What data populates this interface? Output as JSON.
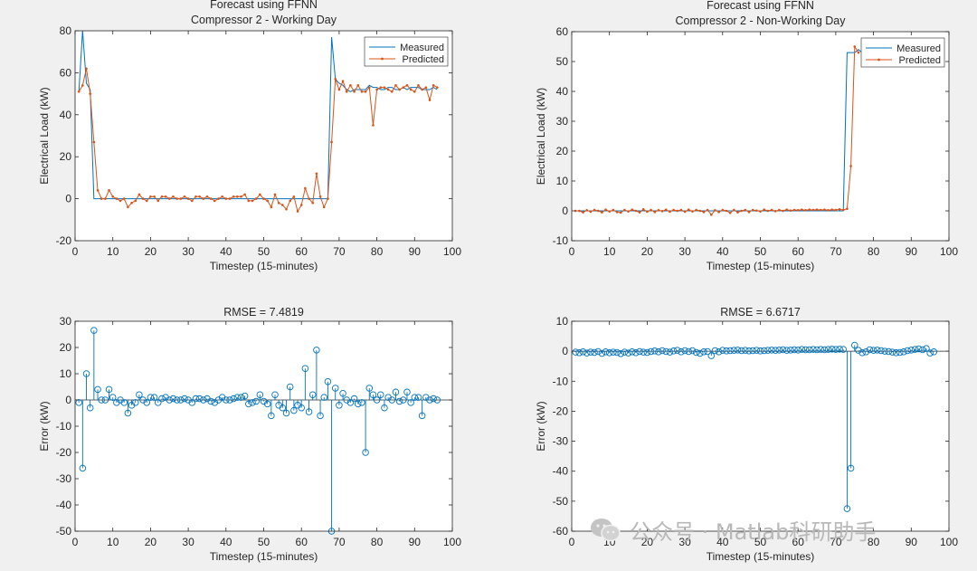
{
  "chart_data": [
    {
      "type": "line",
      "title": "Forecast using FFNN",
      "subtitle": "Compressor 2 - Working Day",
      "xlabel": "Timestep (15-minutes)",
      "ylabel": "Electrical Load (kW)",
      "xlim": [
        0,
        100
      ],
      "ylim": [
        -20,
        80
      ],
      "xticks": [
        0,
        10,
        20,
        30,
        40,
        50,
        60,
        70,
        80,
        90,
        100
      ],
      "yticks": [
        -20,
        0,
        20,
        40,
        60,
        80
      ],
      "legend": {
        "position": "top-right",
        "entries": [
          "Measured",
          "Predicted"
        ]
      },
      "series": [
        {
          "name": "Measured",
          "color": "#0072bd",
          "values": [
            51,
            80,
            55,
            52,
            0,
            0,
            0,
            0,
            0,
            0,
            0,
            0,
            0,
            0,
            0,
            0,
            0,
            0,
            0,
            0,
            0,
            0,
            0,
            0,
            0,
            0,
            0,
            0,
            0,
            0,
            0,
            0,
            0,
            0,
            0,
            0,
            0,
            0,
            0,
            0,
            0,
            0,
            0,
            0,
            0,
            0,
            0,
            0,
            0,
            0,
            0,
            0,
            0,
            0,
            0,
            0,
            0,
            0,
            0,
            0,
            0,
            0,
            0,
            0,
            0,
            0,
            0,
            77,
            57,
            55,
            54,
            52,
            51,
            52,
            52,
            52,
            52,
            54,
            53,
            53,
            52,
            52,
            53,
            53,
            52,
            52,
            53,
            52,
            53,
            53,
            53,
            52,
            52,
            52,
            53,
            52
          ]
        },
        {
          "name": "Predicted",
          "color": "#d95319",
          "values": [
            51,
            54,
            62,
            50,
            27,
            4,
            0,
            0,
            4,
            1,
            0,
            -1,
            0,
            -4,
            -2,
            -1,
            2,
            0,
            -1,
            1,
            1,
            -1,
            1,
            1,
            0,
            1,
            0,
            0,
            1,
            0,
            -1,
            1,
            1,
            0,
            1,
            0,
            -1,
            0,
            1,
            0,
            0,
            1,
            1,
            1,
            2,
            -1,
            -1,
            0,
            2,
            0,
            -1,
            -4,
            2,
            -2,
            -3,
            -5,
            -1,
            1,
            -6,
            -3,
            5,
            0,
            -2,
            12,
            1,
            -4,
            0,
            27,
            57,
            52,
            56,
            51,
            54,
            51,
            54,
            51,
            51,
            53,
            35,
            52,
            53,
            53,
            52,
            51,
            54,
            52,
            53,
            54,
            52,
            51,
            54,
            52,
            53,
            47,
            54,
            53
          ]
        }
      ]
    },
    {
      "type": "line",
      "title": "Forecast using FFNN",
      "subtitle": "Compressor 2 - Non-Working Day",
      "xlabel": "Timestep (15-minutes)",
      "ylabel": "Electrical Load (kW)",
      "xlim": [
        0,
        100
      ],
      "ylim": [
        -10,
        60
      ],
      "xticks": [
        0,
        10,
        20,
        30,
        40,
        50,
        60,
        70,
        80,
        90,
        100
      ],
      "yticks": [
        -10,
        0,
        10,
        20,
        30,
        40,
        50,
        60
      ],
      "legend": {
        "position": "top-right",
        "entries": [
          "Measured",
          "Predicted"
        ]
      },
      "series": [
        {
          "name": "Measured",
          "color": "#0072bd",
          "values": [
            0,
            0,
            0,
            0,
            0,
            0,
            0,
            0,
            0,
            0,
            0,
            0,
            0,
            0,
            0,
            0,
            0,
            0,
            0,
            0,
            0,
            0,
            0,
            0,
            0,
            0,
            0,
            0,
            0,
            0,
            0,
            0,
            0,
            0,
            0,
            0,
            0,
            0,
            0,
            0,
            0,
            0,
            0,
            0,
            0,
            0,
            0,
            0,
            0,
            0,
            0,
            0,
            0,
            0,
            0,
            0,
            0,
            0,
            0,
            0,
            0,
            0,
            0,
            0,
            0,
            0,
            0,
            0,
            0,
            0,
            0,
            0,
            53,
            53,
            53,
            54,
            53,
            54
          ]
        },
        {
          "name": "Predicted",
          "color": "#d95319",
          "values": [
            0,
            0,
            -0.5,
            0.2,
            -0.3,
            0.3,
            0,
            -0.5,
            0.4,
            -0.2,
            0.3,
            -0.4,
            -0.6,
            0.3,
            -0.2,
            0.4,
            0,
            -0.5,
            0.5,
            -0.3,
            0.3,
            -0.4,
            0.2,
            -0.1,
            0.4,
            -0.3,
            0.3,
            0,
            0.3,
            -0.3,
            0.4,
            -0.2,
            0.3,
            0,
            -0.4,
            0.3,
            -1.3,
            0.2,
            -0.4,
            0.3,
            0,
            -0.7,
            0.3,
            -0.5,
            0,
            0.3,
            -0.4,
            0.3,
            0.1,
            -0.2,
            0.4,
            0,
            0.3,
            -0.1,
            0.3,
            0,
            0.4,
            0.1,
            0.3,
            0.2,
            0.4,
            0.2,
            0.4,
            0.3,
            0.4,
            0.3,
            0.4,
            0.2,
            0.4,
            0.3,
            0.5,
            0.3,
            0.7,
            15,
            55,
            53
          ]
        }
      ]
    },
    {
      "type": "stem",
      "title": "RMSE = 7.4819",
      "xlabel": "Timestep (15-minutes)",
      "ylabel": "Error (kW)",
      "xlim": [
        0,
        100
      ],
      "ylim": [
        -50,
        30
      ],
      "xticks": [
        0,
        10,
        20,
        30,
        40,
        50,
        60,
        70,
        80,
        90,
        100
      ],
      "yticks": [
        -50,
        -40,
        -30,
        -20,
        -10,
        0,
        10,
        20,
        30
      ],
      "color": "#0072bd",
      "values": [
        -1,
        -26,
        10,
        -3,
        26.5,
        4,
        0,
        0,
        4,
        1,
        -1,
        0,
        -1,
        -5,
        -2,
        -1,
        2,
        0,
        -1,
        1,
        1,
        -1,
        0.5,
        1,
        0,
        0.5,
        0,
        0,
        0.5,
        0,
        -1,
        0.5,
        0.5,
        0,
        0.5,
        -0.5,
        -1,
        0,
        1,
        0,
        0,
        0.5,
        1,
        1,
        1.5,
        -1.5,
        -1,
        -0.5,
        2,
        -0.5,
        -1.5,
        -6,
        2,
        -2,
        -3,
        -5,
        5,
        -4,
        -2,
        -3,
        12,
        -4.5,
        2,
        19,
        -6,
        1,
        7,
        -50,
        4.5,
        -2,
        2.5,
        0,
        -1,
        0.5,
        -1.5,
        -1,
        -20,
        4.5,
        2,
        0,
        2,
        -3,
        1,
        0,
        3,
        -0.5,
        0,
        3,
        -1,
        1,
        1,
        -6,
        1,
        0,
        0.5,
        0
      ]
    },
    {
      "type": "stem",
      "title": "RMSE = 6.6717",
      "xlabel": "Timestep (15-minutes)",
      "ylabel": "Error (kW)",
      "xlim": [
        0,
        100
      ],
      "ylim": [
        -60,
        10
      ],
      "xticks": [
        0,
        10,
        20,
        30,
        40,
        50,
        60,
        70,
        80,
        90,
        100
      ],
      "yticks": [
        -60,
        -50,
        -40,
        -30,
        -20,
        -10,
        0,
        10
      ],
      "color": "#0072bd",
      "values": [
        -0.3,
        -0.5,
        -0.2,
        -0.6,
        -0.3,
        -0.4,
        -0.1,
        -0.7,
        -0.2,
        -0.5,
        -0.3,
        -0.4,
        -0.8,
        -0.3,
        -0.6,
        -0.2,
        -0.5,
        -0.1,
        -0.3,
        -0.4,
        -0.1,
        0.1,
        -0.2,
        0.2,
        -0.1,
        -0.3,
        0.1,
        0.3,
        -0.2,
        0.2,
        -0.1,
        0.2,
        -0.4,
        -0.7,
        -0.2,
        -0.1,
        -1.5,
        0.2,
        -0.2,
        0.3,
        0.1,
        0.2,
        0.3,
        0.4,
        0.2,
        0.3,
        0.1,
        0.2,
        0.3,
        0.1,
        0.2,
        0.3,
        0.4,
        0.3,
        0.4,
        0.5,
        0.3,
        0.4,
        0.5,
        0.4,
        0.6,
        0.5,
        0.5,
        0.6,
        0.5,
        0.6,
        0.5,
        0.6,
        0.7,
        0.6,
        0.7,
        0.6,
        -52.5,
        -39,
        2,
        0.3,
        -0.5,
        -0.2,
        0.5,
        0.3,
        0.4,
        0.2,
        0,
        -0.1,
        -0.3,
        -0.5,
        -0.4,
        -0.2,
        0.2,
        0.4,
        0.6,
        0.8,
        0.5,
        0.9,
        -0.6,
        -0.2
      ]
    }
  ],
  "watermark": {
    "text": "公众号 · Matlab科研助手",
    "icon": "wechat-icon"
  }
}
